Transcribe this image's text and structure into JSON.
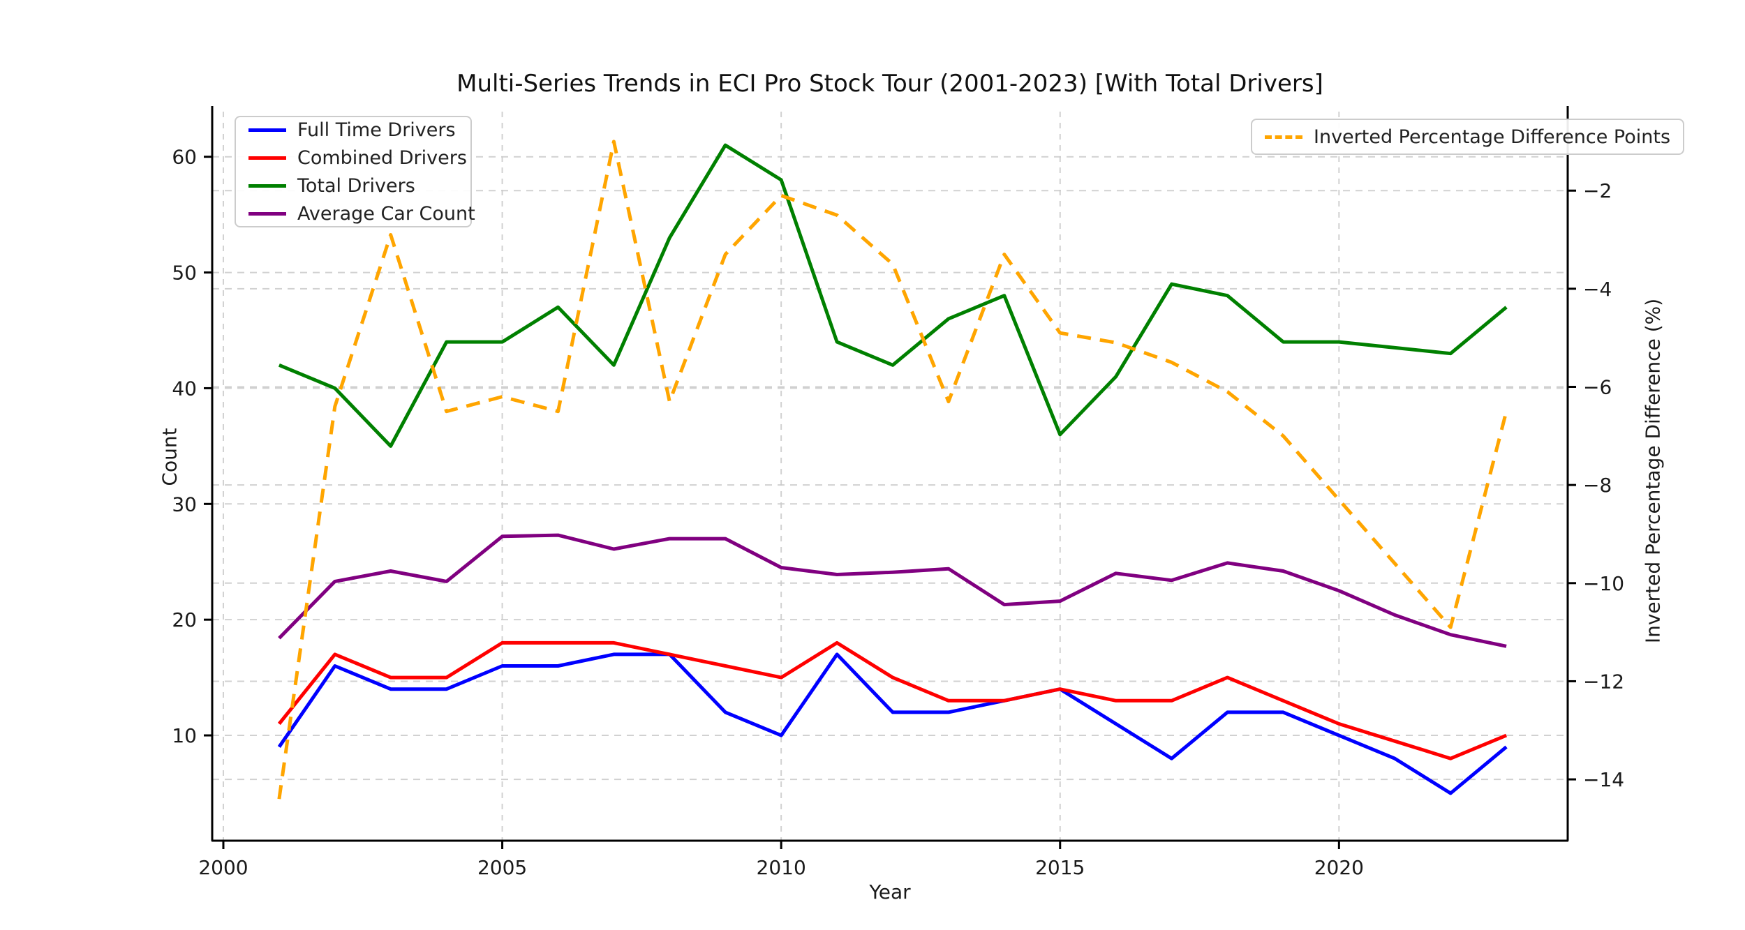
{
  "title": "Multi-Series Trends in ECI Pro Stock Tour (2001-2023) [With Total Drivers]",
  "axes": {
    "x_label": "Year",
    "y_left_label": "Count",
    "y_right_label": "Inverted Percentage Difference (%)",
    "x_tick_labels": [
      "2000",
      "2005",
      "2010",
      "2015",
      "2020"
    ],
    "x_tick_years": [
      2000,
      2005,
      2010,
      2015,
      2020
    ],
    "y_left_tick_labels": [
      "10",
      "20",
      "30",
      "40",
      "50",
      "60"
    ],
    "y_left_ticks": [
      10,
      20,
      30,
      40,
      50,
      60
    ],
    "y_right_tick_labels": [
      "−2",
      "−4",
      "−6",
      "−8",
      "−10",
      "−12",
      "−14"
    ],
    "y_right_ticks": [
      -2,
      -4,
      -6,
      -8,
      -10,
      -12,
      -14
    ]
  },
  "colors": {
    "full_time": "#0000ff",
    "combined": "#ff0000",
    "total": "#008000",
    "avg_car": "#800080",
    "inverted_pct": "#ffa500",
    "grid": "#c9c9c9",
    "spine": "#000000"
  },
  "chart_data": {
    "type": "line",
    "title": "Multi-Series Trends in ECI Pro Stock Tour (2001-2023) [With Total Drivers]",
    "xlabel": "Year",
    "ylabel_left": "Count",
    "ylabel_right": "Inverted Percentage Difference (%)",
    "x": [
      2001,
      2002,
      2003,
      2004,
      2005,
      2006,
      2007,
      2008,
      2009,
      2010,
      2011,
      2012,
      2013,
      2014,
      2015,
      2016,
      2017,
      2018,
      2019,
      2020,
      2021,
      2022,
      2023
    ],
    "xlim": [
      1999.8,
      2024.1
    ],
    "ylim_left": [
      0.9,
      63.9
    ],
    "ylim_right": [
      -15.25,
      -0.39
    ],
    "grid": true,
    "legend_left_position": "upper left",
    "legend_right_position": "upper right",
    "series": [
      {
        "name": "Full Time Drivers",
        "axis": "left",
        "color_key": "full_time",
        "style": "solid",
        "values": [
          9,
          16,
          14,
          14,
          16,
          16,
          17,
          17,
          12,
          10,
          17,
          12,
          12,
          13,
          14,
          11,
          8,
          12,
          12,
          10,
          8,
          5,
          9
        ]
      },
      {
        "name": "Combined Drivers",
        "axis": "left",
        "color_key": "combined",
        "style": "solid",
        "values": [
          11,
          17,
          15,
          15,
          18,
          18,
          18,
          17,
          16,
          15,
          18,
          15,
          13,
          13,
          14,
          13,
          13,
          15,
          13,
          11,
          9.5,
          8,
          10
        ]
      },
      {
        "name": "Total Drivers",
        "axis": "left",
        "color_key": "total",
        "style": "solid",
        "values": [
          42,
          40,
          35,
          44,
          44,
          47,
          42,
          53,
          61,
          58,
          44,
          42,
          46,
          48,
          36,
          41,
          49,
          48,
          44,
          44,
          43.5,
          43,
          47
        ]
      },
      {
        "name": "Average Car Count",
        "axis": "left",
        "color_key": "avg_car",
        "style": "solid",
        "values": [
          18.4,
          23.3,
          24.2,
          23.3,
          27.2,
          27.3,
          26.1,
          27,
          27,
          24.5,
          23.9,
          24.1,
          24.4,
          21.3,
          21.6,
          24,
          23.4,
          24.9,
          24.2,
          22.5,
          20.4,
          18.7,
          17.7
        ]
      },
      {
        "name": "Inverted Percentage Difference Points",
        "axis": "right",
        "color_key": "inverted_pct",
        "style": "dashed",
        "values": [
          -14.4,
          -6.4,
          -2.9,
          -6.5,
          -6.2,
          -6.5,
          -1.0,
          -6.3,
          -3.3,
          -2.1,
          -2.5,
          -3.5,
          -6.3,
          -3.3,
          -4.9,
          -5.1,
          -5.5,
          -6.1,
          -7.0,
          -8.3,
          -9.6,
          -10.9,
          -6.5
        ]
      }
    ]
  }
}
